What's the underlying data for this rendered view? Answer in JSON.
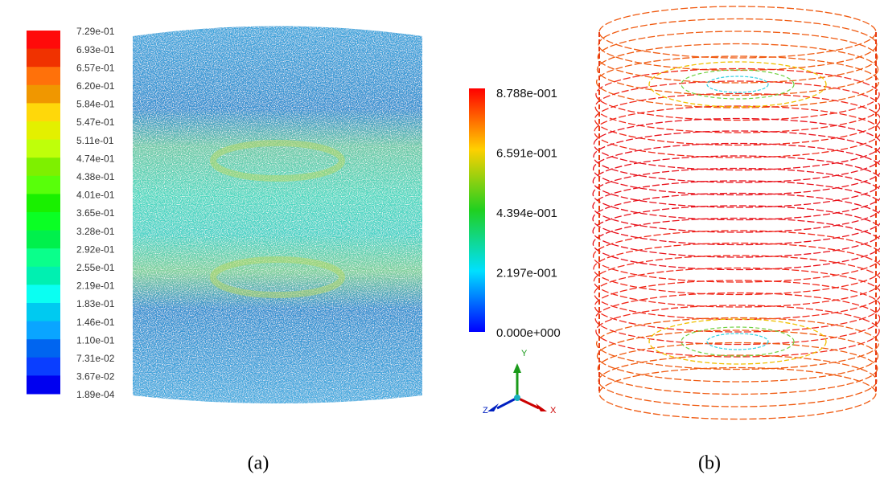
{
  "panel_a": {
    "colorbar_labels": [
      "7.29e-01",
      "6.93e-01",
      "6.57e-01",
      "6.20e-01",
      "5.84e-01",
      "5.47e-01",
      "5.11e-01",
      "4.74e-01",
      "4.38e-01",
      "4.01e-01",
      "3.65e-01",
      "3.28e-01",
      "2.92e-01",
      "2.55e-01",
      "2.19e-01",
      "1.83e-01",
      "1.46e-01",
      "1.10e-01",
      "7.31e-02",
      "3.67e-02",
      "1.89e-04"
    ],
    "caption": "(a)"
  },
  "panel_b": {
    "colorbar_labels": [
      "8.788e-001",
      "6.591e-001",
      "4.394e-001",
      "2.197e-001",
      "0.000e+000"
    ],
    "axes": {
      "y": "Y",
      "x": "X",
      "z": "Z"
    },
    "caption": "(b)"
  }
}
